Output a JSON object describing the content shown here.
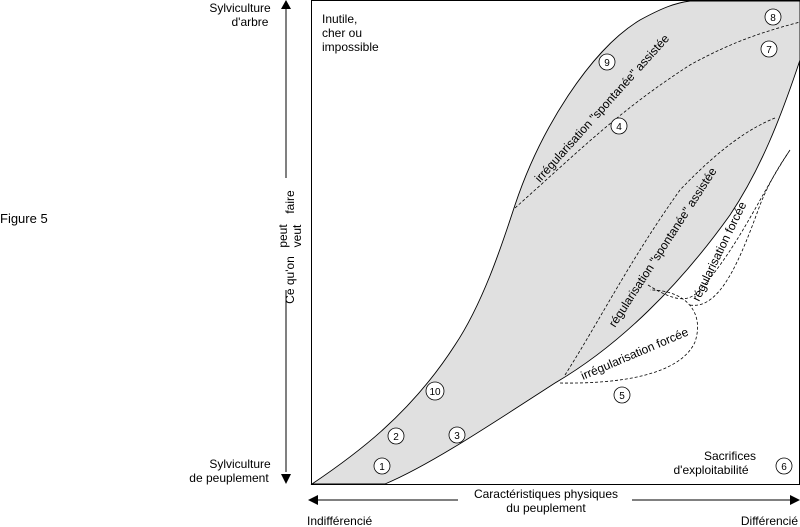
{
  "figure_label": "Figure 5",
  "y_axis": {
    "top_label_lines": [
      "Sylviculture",
      "d'arbre"
    ],
    "bottom_label_lines": [
      "Sylviculture",
      "de peuplement"
    ],
    "title_main": "Ce qu'on",
    "title_options_upper": "peut",
    "title_options_lower": "veut",
    "title_end": "faire"
  },
  "x_axis": {
    "title_lines": [
      "Caractéristiques physiques",
      "du peuplement"
    ],
    "left_label": "Indifférencié",
    "right_label": "Différencié"
  },
  "regions": {
    "top_left_lines": [
      "Inutile,",
      "cher ou",
      "impossible"
    ],
    "bottom_right_lines": [
      "Sacrifices",
      "d'exploitabilité"
    ]
  },
  "zones": [
    {
      "label": "irrégularisation \"spontanée\" assistée"
    },
    {
      "label": "régularisation \"spontanée\" assistée"
    },
    {
      "label": "régularisation forcée"
    },
    {
      "label": "irrégularisation forcée"
    }
  ],
  "cases": [
    "1",
    "2",
    "3",
    "4",
    "5",
    "6",
    "7",
    "8",
    "9",
    "10"
  ],
  "colors": {
    "band_fill": "#e0e0e0",
    "line": "#000000"
  }
}
